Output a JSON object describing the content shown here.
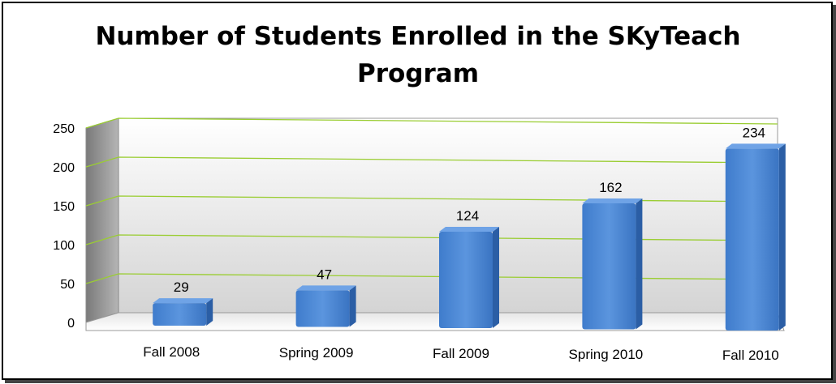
{
  "chart_data": {
    "type": "bar",
    "title_lines": [
      "Number of Students Enrolled in the SKyTeach",
      "Program"
    ],
    "categories": [
      "Fall 2008",
      "Spring 2009",
      "Fall 2009",
      "Spring 2010",
      "Fall 2010"
    ],
    "values": [
      29,
      47,
      124,
      162,
      234
    ],
    "yticks": [
      0,
      50,
      100,
      150,
      200,
      250
    ],
    "ylim": [
      0,
      250
    ],
    "grid": true,
    "legend": "none",
    "colors": {
      "bar_face": "#4a86d4",
      "bar_side": "#2b5ea5",
      "bar_top": "#6fa3e6",
      "gridline": "#9acd32",
      "back_wall_top": "#ffffff",
      "back_wall_bottom": "#d6d6d6",
      "side_wall": "#8c8c8c"
    }
  }
}
